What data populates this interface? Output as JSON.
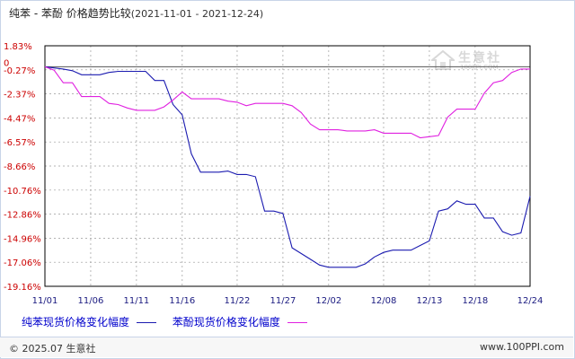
{
  "title": {
    "main": "纯苯 - 苯酚 价格趋势比较",
    "range": "(2021-11-01 - 2021-12-24)"
  },
  "watermark": {
    "brand": "生意社",
    "url": "100PPI.COM"
  },
  "legend": {
    "series1": "纯苯现货价格变化幅度",
    "series2": "苯酚现货价格变化幅度"
  },
  "footer": {
    "copyright": "© 2025.07 生意社",
    "site": "www.100PPI.com"
  },
  "colors": {
    "series1": "#1b1bb0",
    "series2": "#e020e0",
    "grid": "#9a9a9a",
    "axis": "#000000",
    "tick_text": "#cc0000",
    "xtick_text": "#1a1a80"
  },
  "chart_data": {
    "type": "line",
    "title": "纯苯 - 苯酚 价格趋势比较",
    "xlabel": "",
    "ylabel": "",
    "grid": true,
    "legend_position": "bottom",
    "x_labels": [
      "11/01",
      "11/06",
      "11/11",
      "11/16",
      "11/22",
      "11/27",
      "12/02",
      "12/08",
      "12/13",
      "12/18",
      "12/24"
    ],
    "x_labels_dates": [
      "2021-11-01",
      "2021-11-06",
      "2021-11-11",
      "2021-11-16",
      "2021-11-22",
      "2021-11-27",
      "2021-12-02",
      "2021-12-08",
      "2021-12-13",
      "2021-12-18",
      "2021-12-24"
    ],
    "y_ticks": [
      "1.83%",
      "-0.27%",
      "-2.37%",
      "-4.47%",
      "-6.57%",
      "-8.66%",
      "-10.76%",
      "-12.86%",
      "-14.96%",
      "-17.06%",
      "-19.16%"
    ],
    "y_zero_label": "0",
    "ylim": [
      -19.16,
      1.83
    ],
    "series": [
      {
        "name": "纯苯现货价格变化幅度",
        "points": [
          [
            "2021-11-01",
            0
          ],
          [
            "2021-11-03",
            -0.2
          ],
          [
            "2021-11-04",
            -0.35
          ],
          [
            "2021-11-05",
            -0.7
          ],
          [
            "2021-11-07",
            -0.7
          ],
          [
            "2021-11-08",
            -0.5
          ],
          [
            "2021-11-09",
            -0.4
          ],
          [
            "2021-11-11",
            -0.4
          ],
          [
            "2021-11-12",
            -0.4
          ],
          [
            "2021-11-13",
            -1.2
          ],
          [
            "2021-11-14",
            -1.2
          ],
          [
            "2021-11-15",
            -3.3
          ],
          [
            "2021-11-16",
            -4.2
          ],
          [
            "2021-11-17",
            -7.6
          ],
          [
            "2021-11-18",
            -9.2
          ],
          [
            "2021-11-20",
            -9.2
          ],
          [
            "2021-11-21",
            -9.1
          ],
          [
            "2021-11-22",
            -9.4
          ],
          [
            "2021-11-23",
            -9.4
          ],
          [
            "2021-11-24",
            -9.6
          ],
          [
            "2021-11-25",
            -12.6
          ],
          [
            "2021-11-26",
            -12.6
          ],
          [
            "2021-11-27",
            -12.8
          ],
          [
            "2021-11-28",
            -15.8
          ],
          [
            "2021-11-29",
            -16.3
          ],
          [
            "2021-11-30",
            -16.8
          ],
          [
            "2021-12-01",
            -17.3
          ],
          [
            "2021-12-02",
            -17.5
          ],
          [
            "2021-12-04",
            -17.5
          ],
          [
            "2021-12-05",
            -17.5
          ],
          [
            "2021-12-06",
            -17.2
          ],
          [
            "2021-12-07",
            -16.6
          ],
          [
            "2021-12-08",
            -16.2
          ],
          [
            "2021-12-09",
            -16.0
          ],
          [
            "2021-12-10",
            -16.0
          ],
          [
            "2021-12-11",
            -16.0
          ],
          [
            "2021-12-12",
            -15.6
          ],
          [
            "2021-12-13",
            -15.2
          ],
          [
            "2021-12-14",
            -12.6
          ],
          [
            "2021-12-15",
            -12.4
          ],
          [
            "2021-12-16",
            -11.7
          ],
          [
            "2021-12-17",
            -12.0
          ],
          [
            "2021-12-18",
            -12.0
          ],
          [
            "2021-12-19",
            -13.2
          ],
          [
            "2021-12-20",
            -13.2
          ],
          [
            "2021-12-21",
            -14.4
          ],
          [
            "2021-12-22",
            -14.7
          ],
          [
            "2021-12-23",
            -14.5
          ],
          [
            "2021-12-24",
            -11.3
          ]
        ]
      },
      {
        "name": "苯酚现货价格变化幅度",
        "points": [
          [
            "2021-11-01",
            0
          ],
          [
            "2021-11-02",
            -0.3
          ],
          [
            "2021-11-03",
            -1.4
          ],
          [
            "2021-11-04",
            -1.4
          ],
          [
            "2021-11-05",
            -2.6
          ],
          [
            "2021-11-07",
            -2.6
          ],
          [
            "2021-11-08",
            -3.2
          ],
          [
            "2021-11-09",
            -3.3
          ],
          [
            "2021-11-10",
            -3.6
          ],
          [
            "2021-11-11",
            -3.8
          ],
          [
            "2021-11-13",
            -3.8
          ],
          [
            "2021-11-14",
            -3.5
          ],
          [
            "2021-11-15",
            -2.9
          ],
          [
            "2021-11-16",
            -2.2
          ],
          [
            "2021-11-17",
            -2.8
          ],
          [
            "2021-11-20",
            -2.8
          ],
          [
            "2021-11-21",
            -3.0
          ],
          [
            "2021-11-22",
            -3.1
          ],
          [
            "2021-11-23",
            -3.4
          ],
          [
            "2021-11-24",
            -3.2
          ],
          [
            "2021-11-27",
            -3.2
          ],
          [
            "2021-11-28",
            -3.4
          ],
          [
            "2021-11-29",
            -4.0
          ],
          [
            "2021-11-30",
            -5.0
          ],
          [
            "2021-12-01",
            -5.5
          ],
          [
            "2021-12-02",
            -5.5
          ],
          [
            "2021-12-03",
            -5.5
          ],
          [
            "2021-12-04",
            -5.6
          ],
          [
            "2021-12-05",
            -5.6
          ],
          [
            "2021-12-06",
            -5.6
          ],
          [
            "2021-12-07",
            -5.5
          ],
          [
            "2021-12-08",
            -5.8
          ],
          [
            "2021-12-10",
            -5.8
          ],
          [
            "2021-12-11",
            -5.8
          ],
          [
            "2021-12-12",
            -6.2
          ],
          [
            "2021-12-13",
            -6.1
          ],
          [
            "2021-12-14",
            -6.0
          ],
          [
            "2021-12-15",
            -4.4
          ],
          [
            "2021-12-16",
            -3.7
          ],
          [
            "2021-12-17",
            -3.7
          ],
          [
            "2021-12-18",
            -3.7
          ],
          [
            "2021-12-19",
            -2.3
          ],
          [
            "2021-12-20",
            -1.4
          ],
          [
            "2021-12-21",
            -1.2
          ],
          [
            "2021-12-22",
            -0.5
          ],
          [
            "2021-12-23",
            -0.2
          ],
          [
            "2021-12-24",
            -0.2
          ]
        ]
      }
    ]
  }
}
